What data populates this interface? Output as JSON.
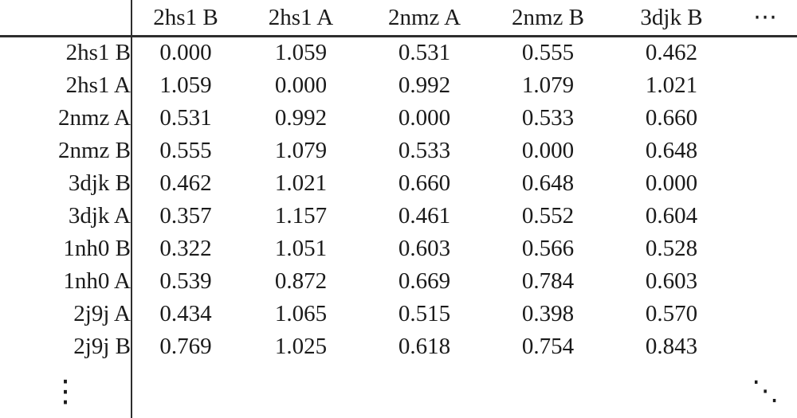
{
  "chart_data": {
    "type": "table",
    "title": "",
    "corner_label": "",
    "col_headers": [
      "2hs1 B",
      "2hs1 A",
      "2nmz A",
      "2nmz B",
      "3djk B"
    ],
    "col_continuation": "⋯",
    "row_labels": [
      "2hs1 B",
      "2hs1 A",
      "2nmz A",
      "2nmz B",
      "3djk B",
      "3djk A",
      "1nh0 B",
      "1nh0 A",
      "2j9j A",
      "2j9j B"
    ],
    "matrix": [
      [
        "0.000",
        "1.059",
        "0.531",
        "0.555",
        "0.462"
      ],
      [
        "1.059",
        "0.000",
        "0.992",
        "1.079",
        "1.021"
      ],
      [
        "0.531",
        "0.992",
        "0.000",
        "0.533",
        "0.660"
      ],
      [
        "0.555",
        "1.079",
        "0.533",
        "0.000",
        "0.648"
      ],
      [
        "0.462",
        "1.021",
        "0.660",
        "0.648",
        "0.000"
      ],
      [
        "0.357",
        "1.157",
        "0.461",
        "0.552",
        "0.604"
      ],
      [
        "0.322",
        "1.051",
        "0.603",
        "0.566",
        "0.528"
      ],
      [
        "0.539",
        "0.872",
        "0.669",
        "0.784",
        "0.603"
      ],
      [
        "0.434",
        "1.065",
        "0.515",
        "0.398",
        "0.570"
      ],
      [
        "0.769",
        "1.025",
        "0.618",
        "0.754",
        "0.843"
      ]
    ],
    "row_continuation": "⋮",
    "diagonal_continuation": "⋱"
  },
  "colors": {
    "text": "#1a1a1a",
    "rule": "#2e2e2e",
    "background": "#ffffff"
  }
}
